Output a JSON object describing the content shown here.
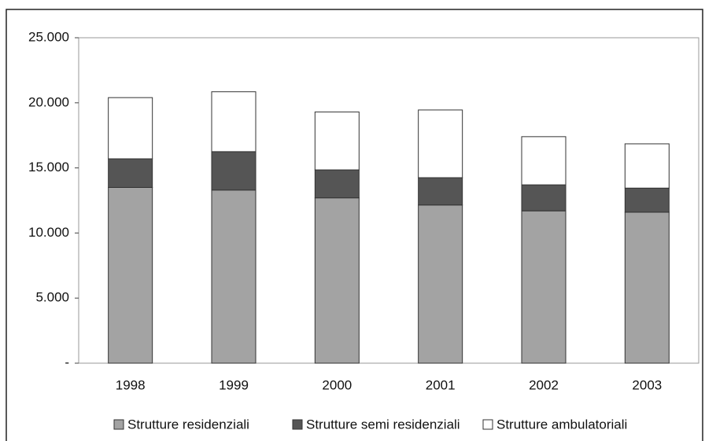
{
  "chart_data": {
    "type": "stacked_bar",
    "categories": [
      "1998",
      "1999",
      "2000",
      "2001",
      "2002",
      "2003"
    ],
    "series": [
      {
        "name": "Strutture residenziali",
        "color": "#a3a3a3",
        "values": [
          13500,
          13300,
          12700,
          12150,
          11700,
          11600
        ]
      },
      {
        "name": "Strutture semi residenziali",
        "color": "#555555",
        "values": [
          2200,
          2950,
          2150,
          2100,
          2000,
          1850
        ]
      },
      {
        "name": "Strutture ambulatoriali",
        "color": "#ffffff",
        "values": [
          4700,
          4600,
          4450,
          5200,
          3700,
          3400
        ]
      }
    ],
    "ylim": [
      0,
      25000
    ],
    "yticks": [
      {
        "value": 0,
        "label": "-"
      },
      {
        "value": 5000,
        "label": "5.000"
      },
      {
        "value": 10000,
        "label": "10.000"
      },
      {
        "value": 15000,
        "label": "15.000"
      },
      {
        "value": 20000,
        "label": "20.000"
      },
      {
        "value": 25000,
        "label": "25.000"
      }
    ],
    "legend": "bottom"
  }
}
